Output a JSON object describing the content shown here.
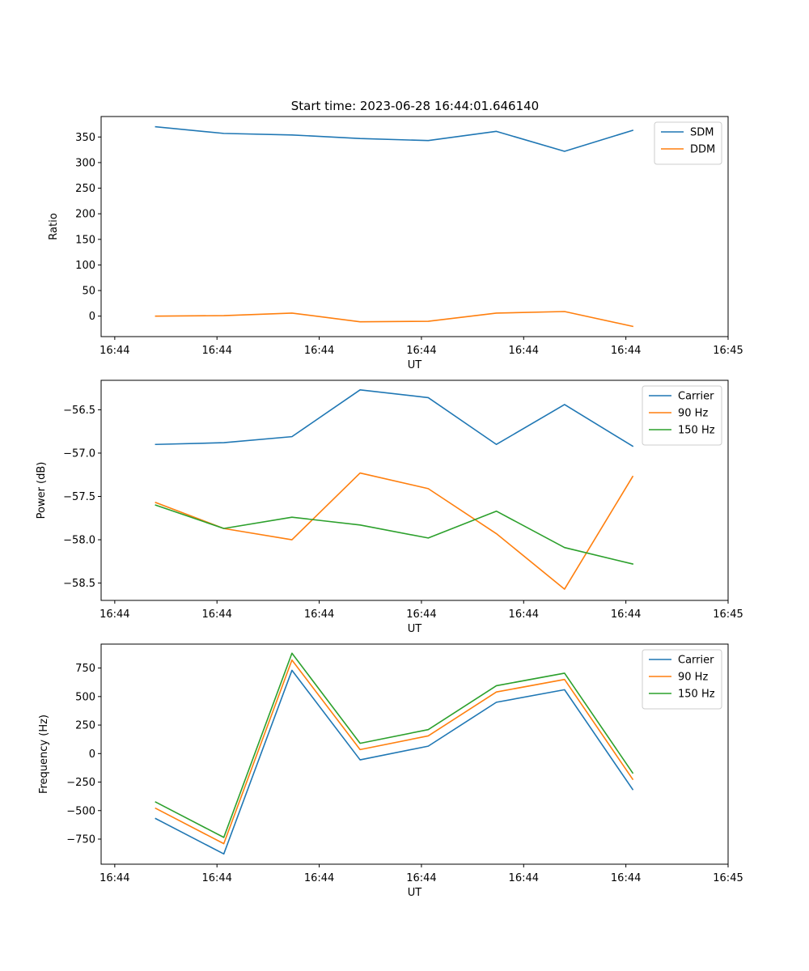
{
  "figure_title": "Start time: 2023-06-28 16:44:01.646140",
  "chart_data": [
    {
      "type": "line",
      "title": "Start time: 2023-06-28 16:44:01.646140",
      "xlabel": "UT",
      "ylabel": "Ratio",
      "x": [
        1,
        2,
        3,
        4,
        5,
        6,
        7,
        8
      ],
      "xlim": [
        0.2,
        9.4
      ],
      "x_ticks": [
        0.4,
        1.9,
        3.4,
        4.9,
        6.4,
        7.9,
        9.4
      ],
      "x_tick_labels": [
        "16:44",
        "16:44",
        "16:44",
        "16:44",
        "16:44",
        "16:44",
        "16:45"
      ],
      "ylim": [
        -40,
        390
      ],
      "y_ticks": [
        0,
        50,
        100,
        150,
        200,
        250,
        300,
        350
      ],
      "y_tick_labels": [
        "0",
        "50",
        "100",
        "150",
        "200",
        "250",
        "300",
        "350"
      ],
      "legend_position": "top-right",
      "grid": false,
      "series": [
        {
          "name": "SDM",
          "color": "#1f77b4",
          "values": [
            370,
            357,
            354,
            347,
            343,
            361,
            322,
            363
          ]
        },
        {
          "name": "DDM",
          "color": "#ff7f0e",
          "values": [
            0,
            1,
            6,
            -11,
            -10,
            6,
            9,
            -20
          ]
        }
      ]
    },
    {
      "type": "line",
      "title": "",
      "xlabel": "UT",
      "ylabel": "Power (dB)",
      "x": [
        1,
        2,
        3,
        4,
        5,
        6,
        7,
        8
      ],
      "xlim": [
        0.2,
        9.4
      ],
      "x_ticks": [
        0.4,
        1.9,
        3.4,
        4.9,
        6.4,
        7.9,
        9.4
      ],
      "x_tick_labels": [
        "16:44",
        "16:44",
        "16:44",
        "16:44",
        "16:44",
        "16:44",
        "16:45"
      ],
      "ylim": [
        -58.7,
        -56.16
      ],
      "y_ticks": [
        -58.5,
        -58.0,
        -57.5,
        -57.0,
        -56.5
      ],
      "y_tick_labels": [
        "−58.5",
        "−58.0",
        "−57.5",
        "−57.0",
        "−56.5"
      ],
      "legend_position": "top-right",
      "grid": false,
      "series": [
        {
          "name": "Carrier",
          "color": "#1f77b4",
          "values": [
            -56.9,
            -56.88,
            -56.81,
            -56.27,
            -56.36,
            -56.9,
            -56.44,
            -56.92
          ]
        },
        {
          "name": "90 Hz",
          "color": "#ff7f0e",
          "values": [
            -57.57,
            -57.87,
            -58.0,
            -57.23,
            -57.41,
            -57.93,
            -58.57,
            -57.27
          ]
        },
        {
          "name": "150 Hz",
          "color": "#2ca02c",
          "values": [
            -57.6,
            -57.87,
            -57.74,
            -57.83,
            -57.98,
            -57.67,
            -58.09,
            -58.28
          ]
        }
      ]
    },
    {
      "type": "line",
      "title": "",
      "xlabel": "UT",
      "ylabel": "Frequency (Hz)",
      "x": [
        1,
        2,
        3,
        4,
        5,
        6,
        7,
        8
      ],
      "xlim": [
        0.2,
        9.4
      ],
      "x_ticks": [
        0.4,
        1.9,
        3.4,
        4.9,
        6.4,
        7.9,
        9.4
      ],
      "x_tick_labels": [
        "16:44",
        "16:44",
        "16:44",
        "16:44",
        "16:44",
        "16:44",
        "16:45"
      ],
      "ylim": [
        -970,
        960
      ],
      "y_ticks": [
        -750,
        -500,
        -250,
        0,
        250,
        500,
        750
      ],
      "y_tick_labels": [
        "−750",
        "−500",
        "−250",
        "0",
        "250",
        "500",
        "750"
      ],
      "legend_position": "top-right",
      "grid": false,
      "series": [
        {
          "name": "Carrier",
          "color": "#1f77b4",
          "values": [
            -570,
            -880,
            730,
            -55,
            65,
            450,
            560,
            -315
          ]
        },
        {
          "name": "90 Hz",
          "color": "#ff7f0e",
          "values": [
            -480,
            -790,
            820,
            35,
            155,
            540,
            650,
            -225
          ]
        },
        {
          "name": "150 Hz",
          "color": "#2ca02c",
          "values": [
            -425,
            -735,
            880,
            90,
            210,
            595,
            705,
            -170
          ]
        }
      ]
    }
  ]
}
